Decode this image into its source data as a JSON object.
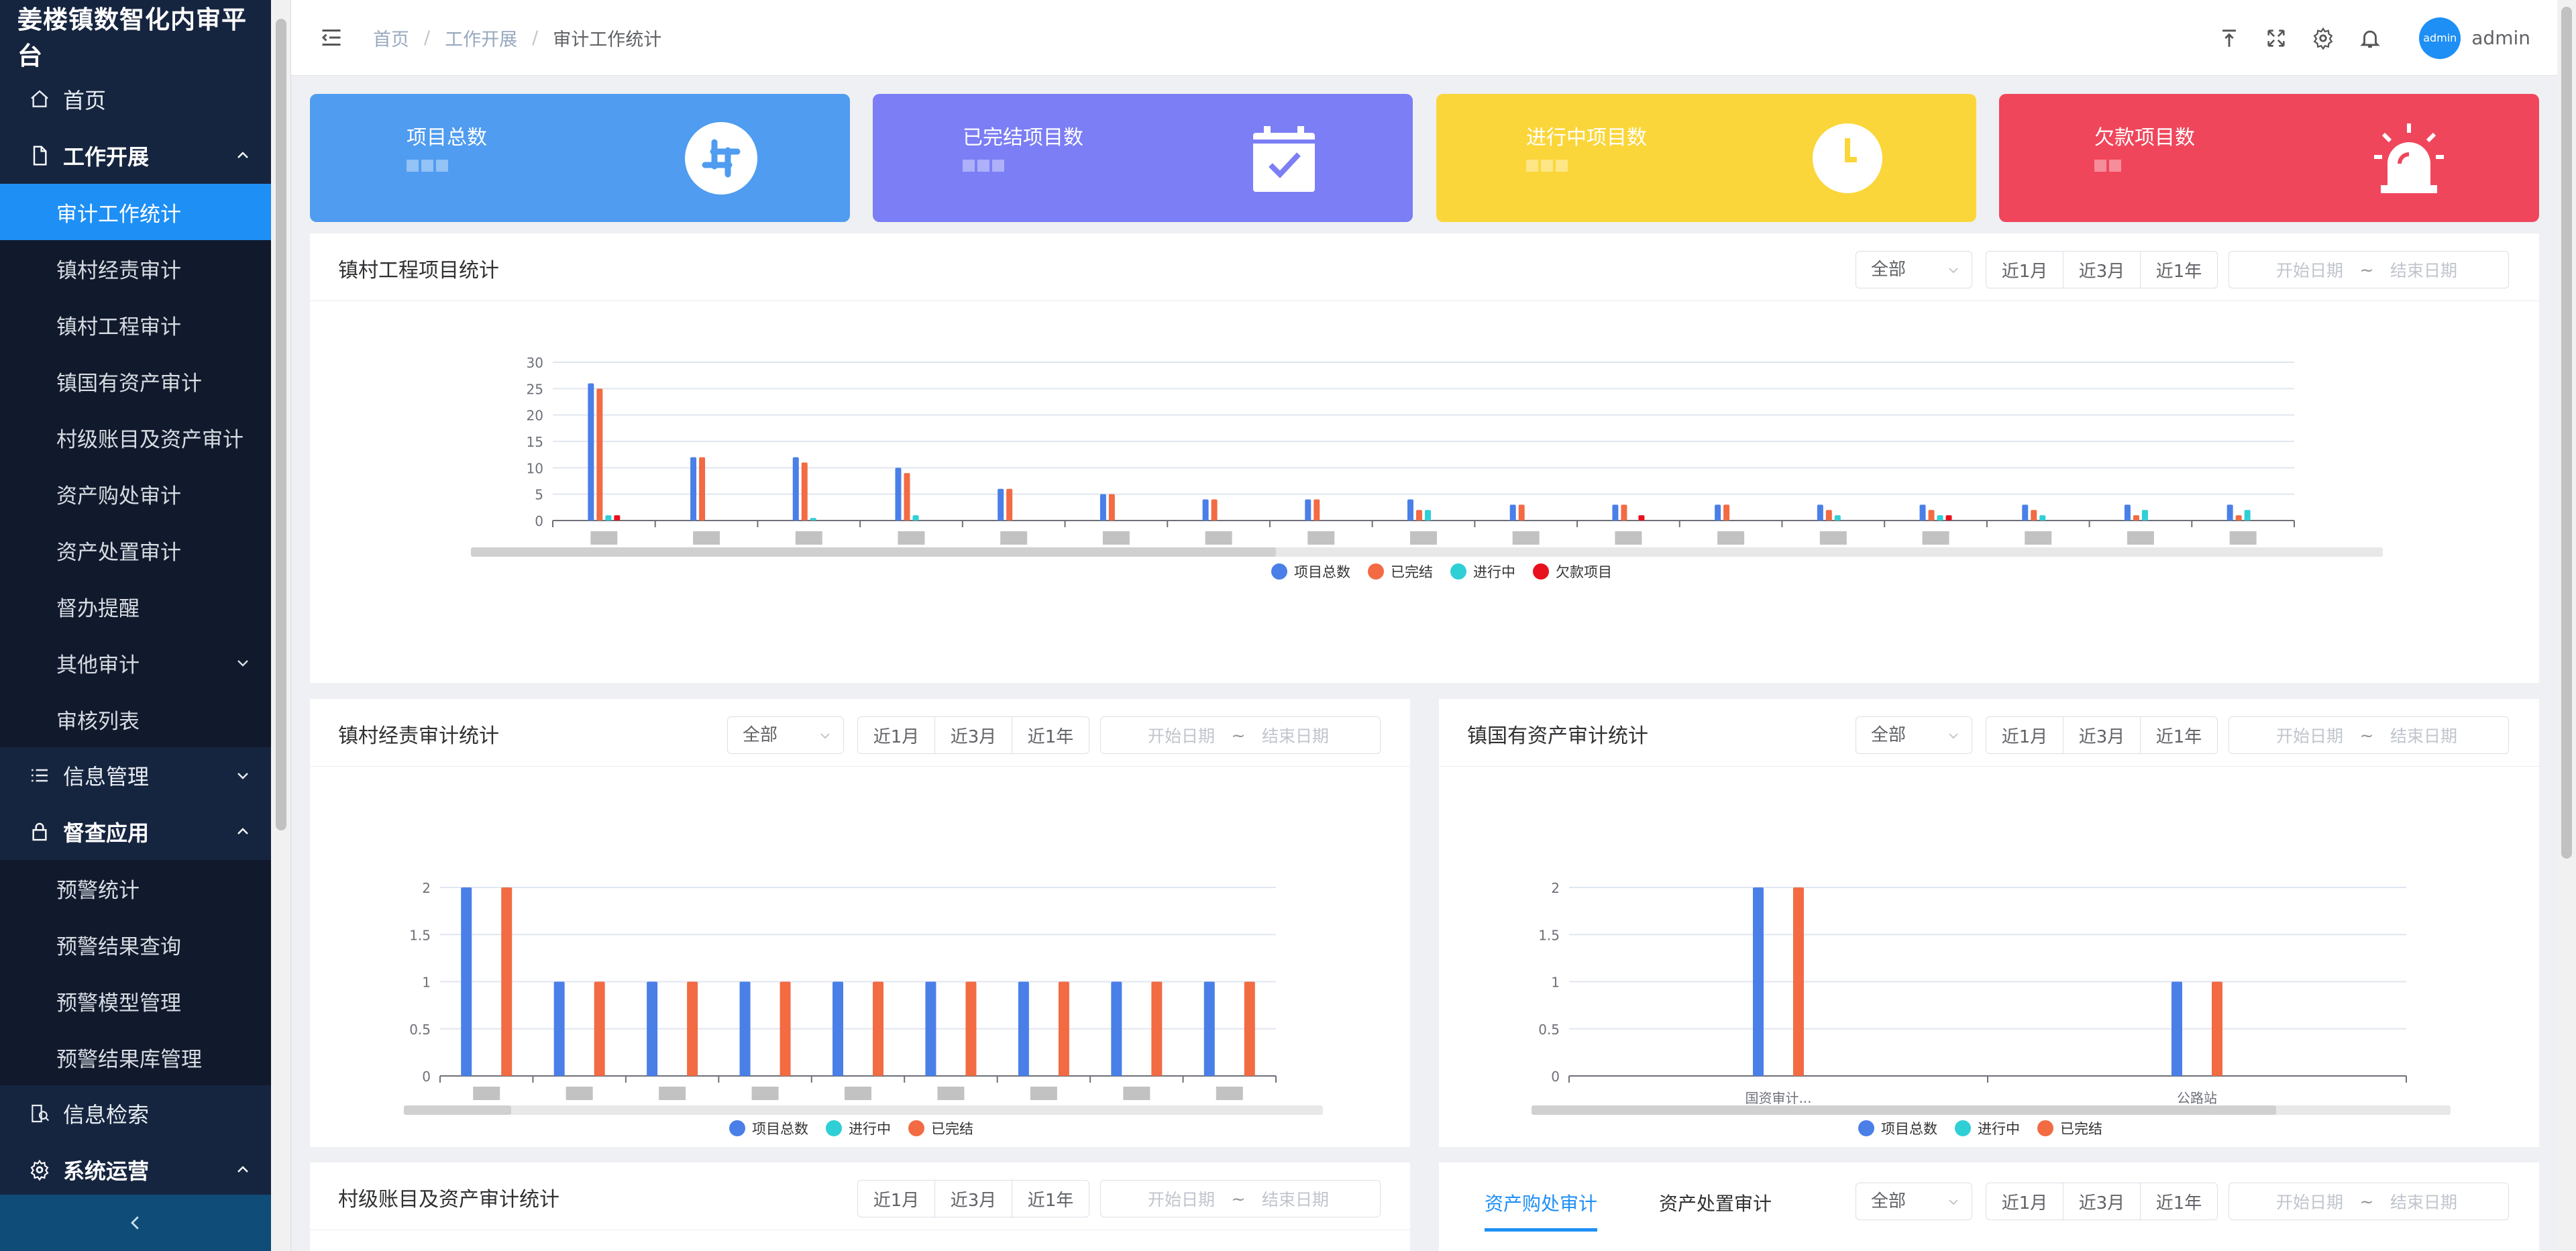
{
  "app": {
    "title": "姜楼镇数智化内审平台"
  },
  "sidebar": {
    "items": [
      {
        "label": "首页",
        "type": "top",
        "icon": "home-icon"
      },
      {
        "label": "工作开展",
        "type": "top",
        "open": true,
        "icon": "document-icon"
      },
      {
        "label": "审计工作统计",
        "type": "sub",
        "active": true
      },
      {
        "label": "镇村经责审计",
        "type": "sub"
      },
      {
        "label": "镇村工程审计",
        "type": "sub"
      },
      {
        "label": "镇国有资产审计",
        "type": "sub"
      },
      {
        "label": "村级账目及资产审计",
        "type": "sub"
      },
      {
        "label": "资产购处审计",
        "type": "sub"
      },
      {
        "label": "资产处置审计",
        "type": "sub"
      },
      {
        "label": "督办提醒",
        "type": "sub"
      },
      {
        "label": "其他审计",
        "type": "sub",
        "chev": "down"
      },
      {
        "label": "审核列表",
        "type": "sub"
      },
      {
        "label": "信息管理",
        "type": "top",
        "chev": "down",
        "icon": "list-icon"
      },
      {
        "label": "督查应用",
        "type": "top",
        "open": true,
        "icon": "lock-icon"
      },
      {
        "label": "预警统计",
        "type": "sub"
      },
      {
        "label": "预警结果查询",
        "type": "sub"
      },
      {
        "label": "预警模型管理",
        "type": "sub"
      },
      {
        "label": "预警结果库管理",
        "type": "sub"
      },
      {
        "label": "信息检索",
        "type": "top",
        "icon": "search-doc-icon"
      },
      {
        "label": "系统运营",
        "type": "top",
        "open": true,
        "icon": "gear-icon"
      }
    ]
  },
  "header": {
    "breadcrumb": [
      "首页",
      "工作开展",
      "审计工作统计"
    ],
    "separator": "/",
    "user": "admin",
    "avatar_text": "admin"
  },
  "cards": [
    {
      "label": "项目总数",
      "color": "#4f9cf0",
      "icon": "slack-icon"
    },
    {
      "label": "已完结项目数",
      "color": "#7b7ef4",
      "icon": "calendar-check-icon"
    },
    {
      "label": "进行中项目数",
      "color": "#fbd63a",
      "icon": "clock-icon"
    },
    {
      "label": "欠款项目数",
      "color": "#f0465c",
      "icon": "alarm-icon"
    }
  ],
  "filters": {
    "all": "全部",
    "ranges": [
      "近1月",
      "近3月",
      "近1年"
    ],
    "start": "开始日期",
    "tilde": "~",
    "end": "结束日期"
  },
  "panels": {
    "engineering": "镇村工程项目统计",
    "economic": "镇村经责审计统计",
    "assets": "镇国有资产审计统计",
    "village": "村级账目及资产审计统计",
    "tabs": [
      "资产购处审计",
      "资产处置审计"
    ]
  },
  "chart_data": [
    {
      "id": "engineering",
      "type": "bar",
      "title": "镇村工程项目统计",
      "ylim": [
        0,
        30
      ],
      "yticks": [
        0,
        5,
        10,
        15,
        20,
        25,
        30
      ],
      "categories": [
        "",
        "",
        "",
        "",
        "",
        "",
        "",
        "",
        "",
        "",
        "",
        "",
        "",
        "",
        "",
        "",
        ""
      ],
      "series": [
        {
          "name": "项目总数",
          "color": "#4a7fe8",
          "values": [
            26,
            12,
            12,
            10,
            6,
            5,
            4,
            4,
            4,
            3,
            3,
            3,
            3,
            3,
            3,
            3,
            3
          ]
        },
        {
          "name": "已完结",
          "color": "#f26b43",
          "values": [
            25,
            12,
            11,
            9,
            6,
            5,
            4,
            4,
            2,
            3,
            3,
            3,
            2,
            2,
            2,
            1,
            1
          ]
        },
        {
          "name": "进行中",
          "color": "#2fcfd6",
          "values": [
            1,
            0,
            0.5,
            1,
            0,
            0,
            0,
            0,
            2,
            0,
            0,
            0,
            1,
            1,
            1,
            2,
            2
          ]
        },
        {
          "name": "欠款项目",
          "color": "#e8101c",
          "values": [
            1,
            0,
            0,
            0,
            0,
            0,
            0,
            0,
            0,
            0,
            1,
            0,
            0,
            1,
            0,
            0,
            0
          ]
        }
      ]
    },
    {
      "id": "economic",
      "type": "bar",
      "title": "镇村经责审计统计",
      "ylim": [
        0,
        2
      ],
      "yticks": [
        0,
        0.5,
        1,
        1.5,
        2
      ],
      "categories": [
        "",
        "",
        "",
        "",
        "",
        "",
        "",
        "",
        ""
      ],
      "series": [
        {
          "name": "项目总数",
          "color": "#4a7fe8",
          "values": [
            2,
            1,
            1,
            1,
            1,
            1,
            1,
            1,
            1
          ]
        },
        {
          "name": "进行中",
          "color": "#2fcfd6",
          "values": [
            0,
            0,
            0,
            0,
            0,
            0,
            0,
            0,
            0
          ]
        },
        {
          "name": "已完结",
          "color": "#f26b43",
          "values": [
            2,
            1,
            1,
            1,
            1,
            1,
            1,
            1,
            1
          ]
        }
      ]
    },
    {
      "id": "assets",
      "type": "bar",
      "title": "镇国有资产审计统计",
      "ylim": [
        0,
        2
      ],
      "yticks": [
        0,
        0.5,
        1,
        1.5,
        2
      ],
      "categories": [
        "国资审计...",
        "公路站"
      ],
      "series": [
        {
          "name": "项目总数",
          "color": "#4a7fe8",
          "values": [
            2,
            1
          ]
        },
        {
          "name": "进行中",
          "color": "#2fcfd6",
          "values": [
            0,
            0
          ]
        },
        {
          "name": "已完结",
          "color": "#f26b43",
          "values": [
            2,
            1
          ]
        }
      ]
    }
  ]
}
